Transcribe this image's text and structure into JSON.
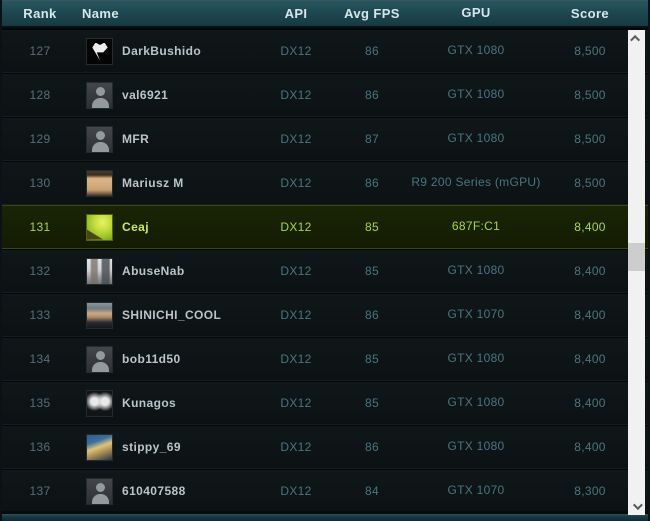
{
  "header": {
    "rank": "Rank",
    "name": "Name",
    "api": "API",
    "avg_fps": "Avg FPS",
    "gpu": "GPU",
    "score": "Score"
  },
  "rows": [
    {
      "rank": "127",
      "name": "DarkBushido",
      "api": "DX12",
      "avg_fps": "86",
      "gpu": "GTX 1080",
      "score": "8,500",
      "avatar": "emblem-dark",
      "highlighted": false
    },
    {
      "rank": "128",
      "name": "val6921",
      "api": "DX12",
      "avg_fps": "86",
      "gpu": "GTX 1080",
      "score": "8,500",
      "avatar": "person-default",
      "highlighted": false
    },
    {
      "rank": "129",
      "name": "MFR",
      "api": "DX12",
      "avg_fps": "87",
      "gpu": "GTX 1080",
      "score": "8,500",
      "avatar": "person-default",
      "highlighted": false
    },
    {
      "rank": "130",
      "name": "Mariusz M",
      "api": "DX12",
      "avg_fps": "86",
      "gpu": "R9 200 Series (mGPU)",
      "score": "8,500",
      "avatar": "cartoon-face",
      "highlighted": false
    },
    {
      "rank": "131",
      "name": "Ceaj",
      "api": "DX12",
      "avg_fps": "85",
      "gpu": "687F:C1",
      "score": "8,400",
      "avatar": "green-art",
      "highlighted": true
    },
    {
      "rank": "132",
      "name": "AbuseNab",
      "api": "DX12",
      "avg_fps": "85",
      "gpu": "GTX 1080",
      "score": "8,400",
      "avatar": "photo-light",
      "highlighted": false
    },
    {
      "rank": "133",
      "name": "SHINICHI_COOL",
      "api": "DX12",
      "avg_fps": "86",
      "gpu": "GTX 1070",
      "score": "8,400",
      "avatar": "photo-suit",
      "highlighted": false
    },
    {
      "rank": "134",
      "name": "bob11d50",
      "api": "DX12",
      "avg_fps": "85",
      "gpu": "GTX 1080",
      "score": "8,400",
      "avatar": "person-default",
      "highlighted": false
    },
    {
      "rank": "135",
      "name": "Kunagos",
      "api": "DX12",
      "avg_fps": "85",
      "gpu": "GTX 1080",
      "score": "8,400",
      "avatar": "dark-figures",
      "highlighted": false
    },
    {
      "rank": "136",
      "name": "stippy_69",
      "api": "DX12",
      "avg_fps": "86",
      "gpu": "GTX 1080",
      "score": "8,400",
      "avatar": "photo-blue",
      "highlighted": false
    },
    {
      "rank": "137",
      "name": "610407588",
      "api": "DX12",
      "avg_fps": "84",
      "gpu": "GTX 1070",
      "score": "8,300",
      "avatar": "person-default",
      "highlighted": false
    }
  ],
  "colors": {
    "header_bg": "#1e4851",
    "header_text": "#d6e7eb",
    "row_value_text": "#497580",
    "row_name_text": "#b7c5ca",
    "highlight_bg": "#161d03",
    "highlight_text": "#a6da2c",
    "scrollbar_track": "#f1f1f1",
    "scrollbar_thumb": "#cdcdcd"
  }
}
